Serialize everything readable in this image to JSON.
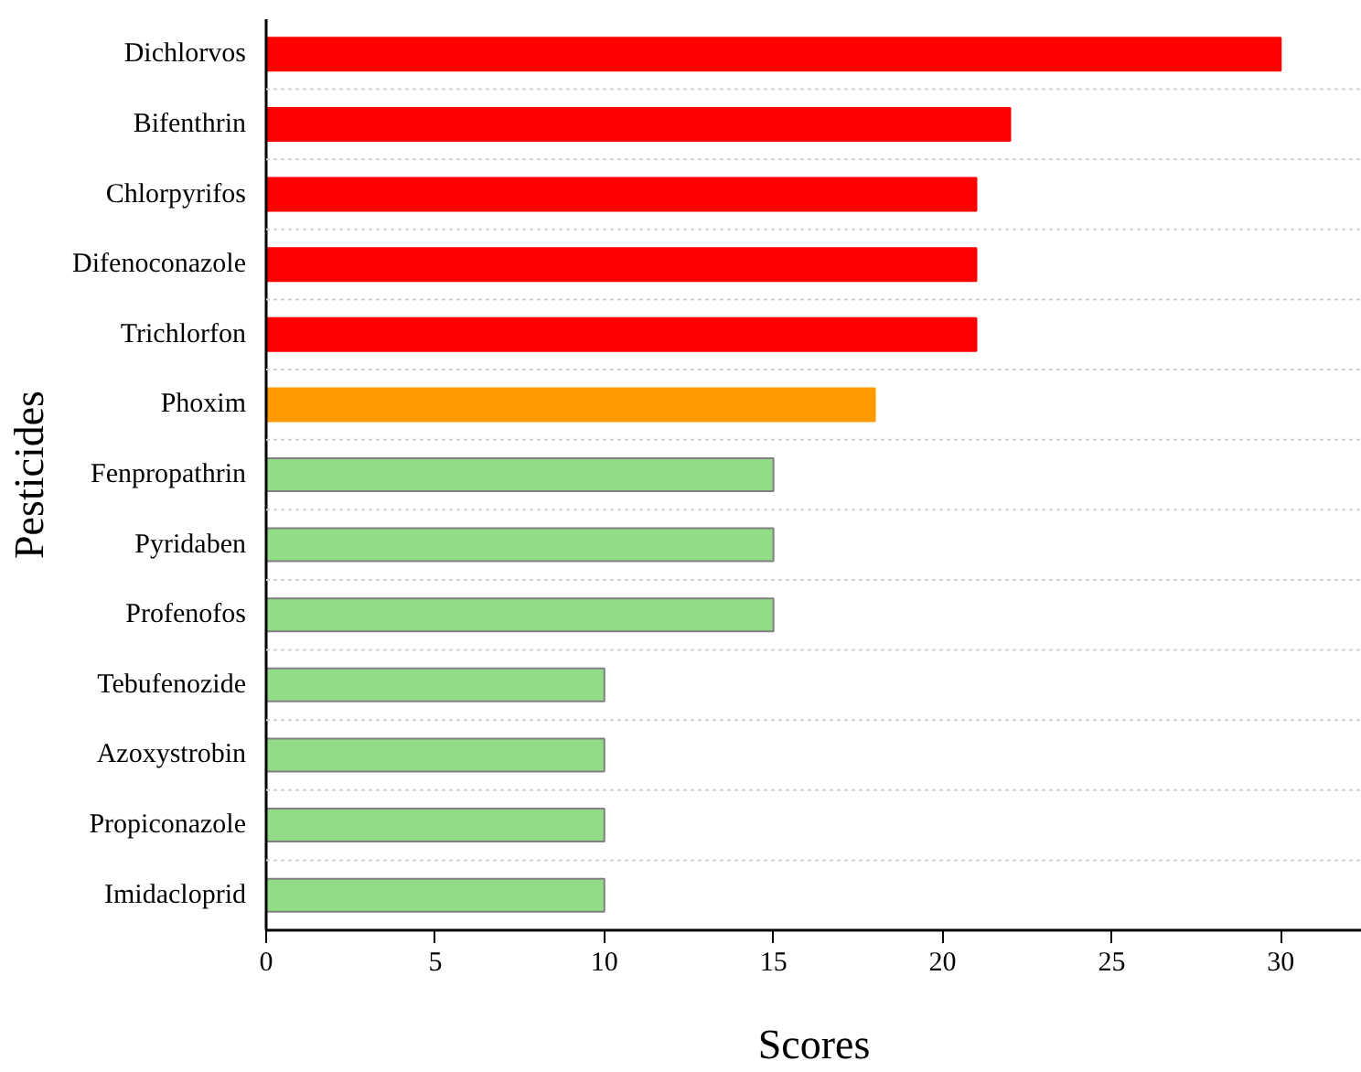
{
  "chart_data": {
    "type": "bar",
    "orientation": "horizontal",
    "xlabel": "Scores",
    "ylabel": "Pesticides",
    "categories": [
      "Dichlorvos",
      "Bifenthrin",
      "Chlorpyrifos",
      "Difenoconazole",
      "Trichlorfon",
      "Phoxim",
      "Fenpropathrin",
      "Pyridaben",
      "Profenofos",
      "Tebufenozide",
      "Azoxystrobin",
      "Propiconazole",
      "Imidacloprid"
    ],
    "values": [
      30,
      22,
      21,
      21,
      21,
      18,
      15,
      15,
      15,
      10,
      10,
      10,
      10
    ],
    "colors": [
      "#ff0000",
      "#ff0000",
      "#ff0000",
      "#ff0000",
      "#ff0000",
      "#ff9a00",
      "#92dc88",
      "#92dc88",
      "#92dc88",
      "#92dc88",
      "#92dc88",
      "#92dc88",
      "#92dc88"
    ],
    "xlim": [
      0,
      32.4
    ],
    "xticks": [
      0,
      5,
      10,
      15,
      20,
      25,
      30
    ],
    "grid": "y"
  }
}
